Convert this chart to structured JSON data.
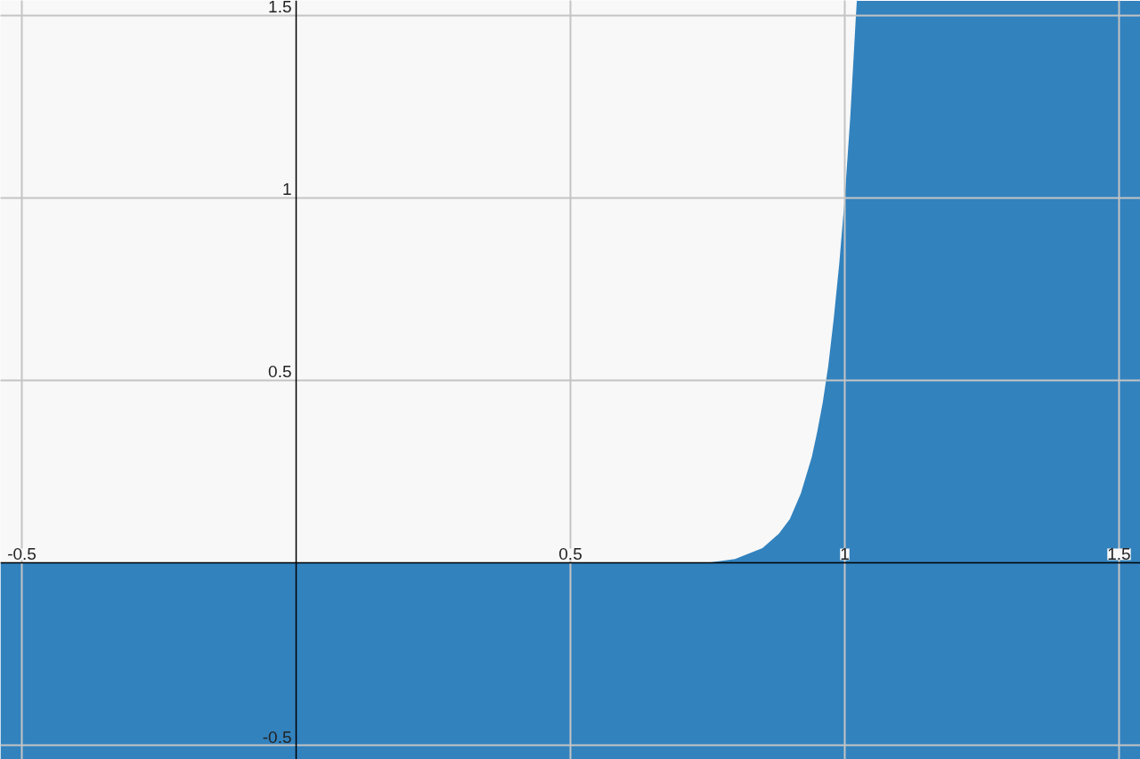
{
  "chart_data": {
    "type": "area",
    "x": [
      -0.539,
      0.75,
      0.8,
      0.85,
      0.88,
      0.9,
      0.92,
      0.94,
      0.95,
      0.96,
      0.97,
      0.98,
      0.99,
      1.0,
      1.01,
      1.02,
      1.022,
      1.539
    ],
    "series": [
      {
        "color": "#3282be",
        "values": [
          0,
          0,
          0.01,
          0.04,
          0.08,
          0.12,
          0.19,
          0.29,
          0.36,
          0.44,
          0.54,
          0.67,
          0.82,
          1.0,
          1.22,
          1.49,
          1.54,
          1.54
        ]
      }
    ],
    "xlim": [
      -0.539,
      1.539
    ],
    "ylim": [
      -0.539,
      1.541
    ],
    "xticks": [
      -0.5,
      0.5,
      1,
      1.5
    ],
    "yticks": [
      -0.5,
      0.5,
      1,
      1.5
    ],
    "bands": [
      {
        "axis": "y",
        "from": -0.539,
        "to": 0,
        "color": "#3282be"
      }
    ],
    "grid": true
  }
}
